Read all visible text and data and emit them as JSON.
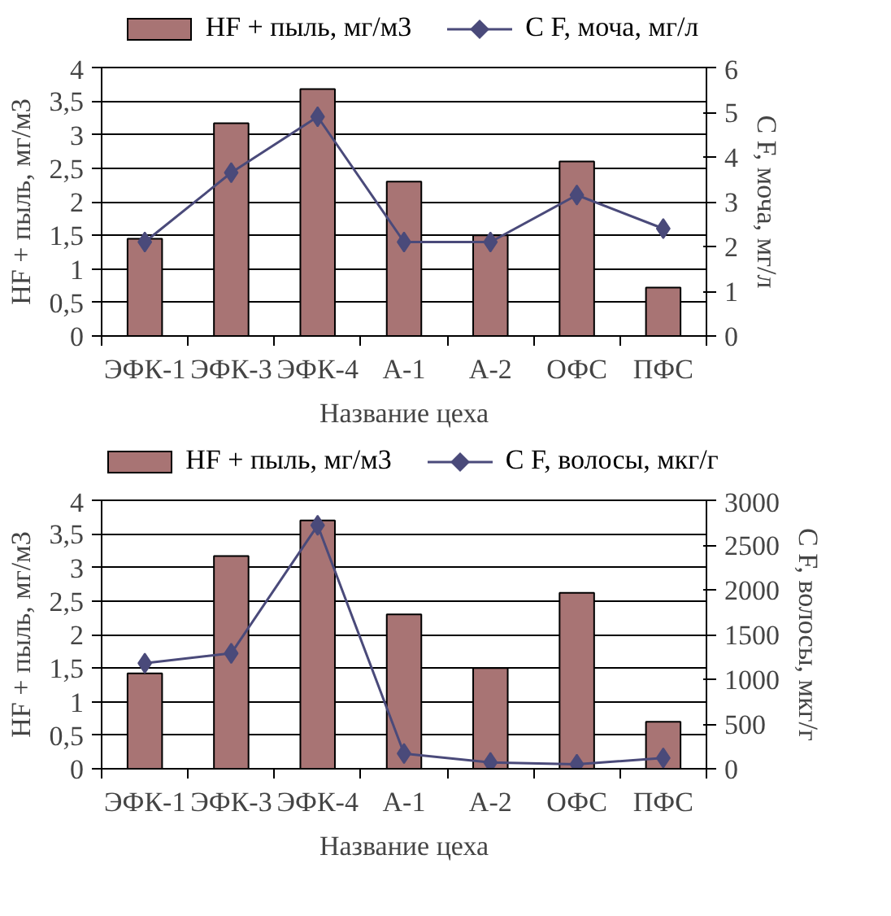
{
  "chart_data": [
    {
      "type": "bar",
      "xlabel": "Название цеха",
      "ylabel": "HF + пыль, мг/м3",
      "y2label": "C F, моча, мг/л",
      "categories": [
        "ЭФК-1",
        "ЭФК-3",
        "ЭФК-4",
        "А-1",
        "А-2",
        "ОФС",
        "ПФС"
      ],
      "series": [
        {
          "name": "HF + пыль, мг/м3",
          "color": "#a87474",
          "values": [
            1.45,
            3.17,
            3.68,
            2.3,
            1.5,
            2.6,
            0.72
          ]
        },
        {
          "name": "C F, моча, мг/л",
          "type": "line",
          "axis": "y2",
          "color": "#4a4a7a",
          "values": [
            2.1,
            3.65,
            4.9,
            2.1,
            2.1,
            3.15,
            2.4
          ]
        }
      ],
      "ylim": [
        0,
        4
      ],
      "yticks": [
        0,
        {
          "value": 0.5,
          "label": "0,5"
        },
        1,
        {
          "value": 1.5,
          "label": "1,5"
        },
        2,
        {
          "value": 2.5,
          "label": "2,5"
        },
        3,
        {
          "value": 3.5,
          "label": "3,5"
        },
        4
      ],
      "y2lim": [
        0,
        6
      ],
      "y2ticks": [
        0,
        1,
        2,
        3,
        4,
        5,
        6
      ],
      "grid": "y",
      "legend": "top",
      "marker": "diamond"
    },
    {
      "type": "bar",
      "xlabel": "Название цеха",
      "ylabel": "HF + пыль, мг/м3",
      "y2label": "C F, волосы, мкг/г",
      "categories": [
        "ЭФК-1",
        "ЭФК-3",
        "ЭФК-4",
        "А-1",
        "А-2",
        "ОФС",
        "ПФС"
      ],
      "series": [
        {
          "name": "HF + пыль, мг/м3",
          "color": "#a87474",
          "values": [
            1.42,
            3.17,
            3.7,
            2.3,
            1.5,
            2.62,
            0.7
          ]
        },
        {
          "name": "C F, волосы, мкг/г",
          "type": "line",
          "axis": "y2",
          "color": "#4a4a7a",
          "values": [
            1180,
            1290,
            2720,
            170,
            70,
            50,
            120
          ]
        }
      ],
      "ylim": [
        0,
        4
      ],
      "yticks": [
        0,
        {
          "value": 0.5,
          "label": "0,5"
        },
        1,
        {
          "value": 1.5,
          "label": "1,5"
        },
        2,
        {
          "value": 2.5,
          "label": "2,5"
        },
        3,
        {
          "value": 3.5,
          "label": "3,5"
        },
        4
      ],
      "y2lim": [
        0,
        3000
      ],
      "y2ticks": [
        0,
        500,
        1000,
        1500,
        2000,
        2500,
        3000
      ],
      "grid": "y",
      "legend": "top",
      "marker": "diamond"
    }
  ]
}
